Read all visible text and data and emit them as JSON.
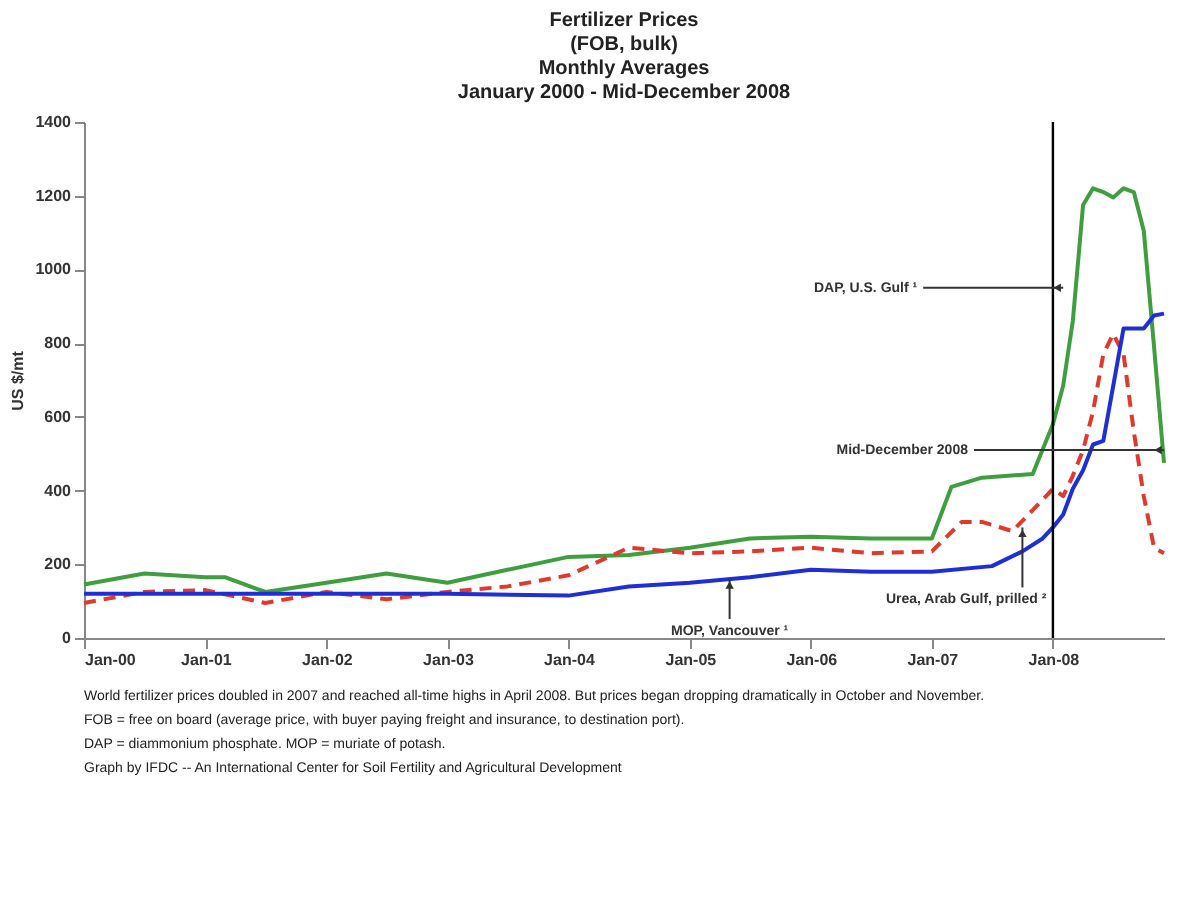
{
  "chart_data": {
    "type": "line",
    "title": "Fertilizer Prices\n(FOB, bulk)\nMonthly Averages\nJanuary 2000 - Mid-December 2008",
    "ylabel": "US $/mt",
    "xlim": [
      "2000-01",
      "2008-12"
    ],
    "xticks": [
      {
        "value": "2000-01",
        "label": "Jan-00"
      },
      {
        "value": "2001-01",
        "label": "Jan-01"
      },
      {
        "value": "2002-01",
        "label": "Jan-02"
      },
      {
        "value": "2003-01",
        "label": "Jan-03"
      },
      {
        "value": "2004-01",
        "label": "Jan-04"
      },
      {
        "value": "2005-01",
        "label": "Jan-05"
      },
      {
        "value": "2006-01",
        "label": "Jan-06"
      },
      {
        "value": "2007-01",
        "label": "Jan-07"
      },
      {
        "value": "2008-01",
        "label": "Jan-08"
      }
    ],
    "ylim": [
      0,
      1400
    ],
    "yticks": [
      0,
      200,
      400,
      600,
      800,
      1000,
      1200,
      1400
    ],
    "grid": false,
    "series": [
      {
        "color": "#3f9f3f",
        "line_style": "solid",
        "x": [
          "2000-01",
          "2000-07",
          "2001-01",
          "2001-03",
          "2001-07",
          "2002-01",
          "2002-07",
          "2003-01",
          "2003-07",
          "2004-01",
          "2004-07",
          "2005-01",
          "2005-07",
          "2006-01",
          "2006-07",
          "2007-01",
          "2007-03",
          "2007-06",
          "2007-11",
          "2008-01",
          "2008-02",
          "2008-03",
          "2008-04",
          "2008-05",
          "2008-06",
          "2008-07",
          "2008-08",
          "2008-09",
          "2008-10",
          "2008-11",
          "2008-12"
        ],
        "values": [
          145,
          175,
          165,
          165,
          125,
          150,
          175,
          150,
          185,
          220,
          225,
          245,
          270,
          275,
          270,
          270,
          410,
          435,
          445,
          580,
          685,
          860,
          1175,
          1220,
          1210,
          1195,
          1220,
          1210,
          1105,
          790,
          475
        ]
      },
      {
        "color": "#e0392e",
        "line_style": "dashed",
        "x": [
          "2000-01",
          "2000-07",
          "2001-01",
          "2001-07",
          "2002-01",
          "2002-07",
          "2003-01",
          "2003-07",
          "2004-01",
          "2004-07",
          "2005-01",
          "2005-07",
          "2006-01",
          "2006-07",
          "2007-01",
          "2007-04",
          "2007-06",
          "2007-09",
          "2007-12",
          "2008-01",
          "2008-02",
          "2008-03",
          "2008-04",
          "2008-05",
          "2008-06",
          "2008-07",
          "2008-08",
          "2008-09",
          "2008-10",
          "2008-11",
          "2008-12"
        ],
        "values": [
          95,
          125,
          130,
          95,
          125,
          105,
          125,
          140,
          170,
          245,
          230,
          235,
          245,
          230,
          235,
          315,
          315,
          290,
          375,
          405,
          385,
          440,
          510,
          615,
          770,
          825,
          770,
          560,
          385,
          245,
          230
        ]
      },
      {
        "color": "#1f2fd6",
        "line_style": "solid",
        "x": [
          "2000-01",
          "2001-01",
          "2002-01",
          "2003-01",
          "2004-01",
          "2004-07",
          "2005-01",
          "2005-07",
          "2006-01",
          "2006-07",
          "2007-01",
          "2007-07",
          "2007-10",
          "2007-12",
          "2008-01",
          "2008-02",
          "2008-03",
          "2008-04",
          "2008-05",
          "2008-06",
          "2008-07",
          "2008-08",
          "2008-09",
          "2008-10",
          "2008-11",
          "2008-12"
        ],
        "values": [
          120,
          120,
          120,
          120,
          115,
          140,
          150,
          165,
          185,
          180,
          180,
          195,
          235,
          270,
          300,
          335,
          405,
          455,
          525,
          535,
          685,
          840,
          840,
          840,
          875,
          880
        ]
      }
    ],
    "ref_lines": [
      {
        "axis": "x",
        "value": "2008-01",
        "color": "#000000"
      }
    ],
    "annotations": [
      {
        "text": "DAP, U.S. Gulf ¹",
        "x": "2008-02",
        "y": 950
      },
      {
        "text": "Mid-December 2008",
        "x": "2008-12",
        "y": 510
      },
      {
        "text": "Urea, Arab Gulf, prilled ²",
        "x": "2007-10",
        "y": 300
      },
      {
        "text": "MOP, Vancouver ¹",
        "x": "2005-05",
        "y": 160
      },
      "World fertilizer prices doubled in 2007 and reached all-time highs in April 2008.  But prices began dropping dramatically in October and November.",
      "FOB = free on board (average price, with buyer paying freight and insurance, to destination port).",
      "DAP = diammonium phosphate.  MOP = muriate of potash.",
      "Graph by IFDC -- An International Center for Soil Fertility and Agricultural Development"
    ]
  }
}
